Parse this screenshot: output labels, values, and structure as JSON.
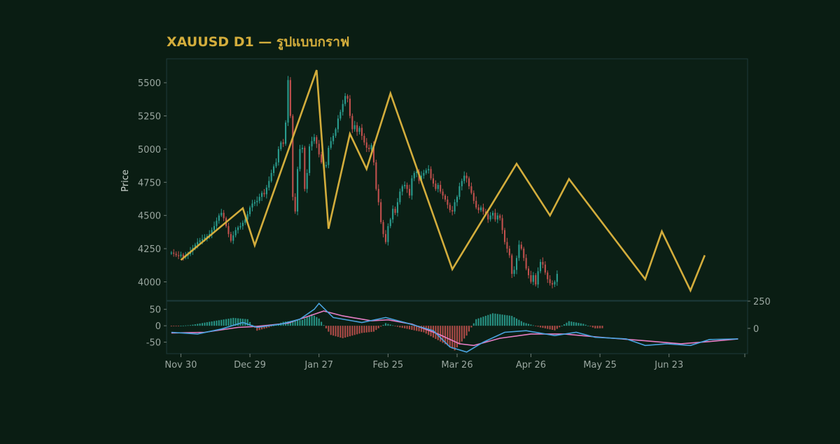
{
  "chart_data": {
    "type": "candlestick",
    "title": "XAUUSD D1 — รูปแบบกราฟ",
    "ylabel": "Price",
    "colors": {
      "background": "#0a1d13",
      "panel": "#0b1f15",
      "frame": "#1d3a3a",
      "up": "#2a9d8f",
      "down": "#c0504d",
      "pattern": "#d3ad3c",
      "macd": "#4aa3df",
      "signal": "#e87ec6"
    },
    "x_range": [
      "2025-11-24",
      "2026-07-26"
    ],
    "x_ticks": [
      {
        "date": "2025-11-30",
        "label": "Nov 30"
      },
      {
        "date": "2025-12-29",
        "label": "Dec 29"
      },
      {
        "date": "2026-01-27",
        "label": "Jan 27"
      },
      {
        "date": "2026-02-25",
        "label": "Feb 25"
      },
      {
        "date": "2026-03-26",
        "label": "Mar 26"
      },
      {
        "date": "2026-04-26",
        "label": "Apr 26"
      },
      {
        "date": "2026-05-25",
        "label": "May 25"
      },
      {
        "date": "2026-06-23",
        "label": "Jun 23"
      }
    ],
    "price_panel": {
      "ylim": [
        3860,
        5680
      ],
      "y_ticks": [
        "4000",
        "4250",
        "4500",
        "4750",
        "5000",
        "5250",
        "5500"
      ],
      "candles": {
        "start_date": "2025-11-26",
        "step_days": 1,
        "open": 4215,
        "close": [
          4220,
          4212,
          4200,
          4195,
          4205,
          4185,
          4198,
          4210,
          4230,
          4255,
          4280,
          4300,
          4312,
          4322,
          4335,
          4345,
          4360,
          4390,
          4420,
          4460,
          4500,
          4520,
          4480,
          4420,
          4360,
          4310,
          4350,
          4390,
          4410,
          4420,
          4445,
          4470,
          4510,
          4560,
          4590,
          4600,
          4610,
          4640,
          4670,
          4660,
          4710,
          4760,
          4820,
          4870,
          4900,
          5000,
          5050,
          5040,
          5200,
          5520,
          5250,
          4640,
          4530,
          4850,
          5000,
          5010,
          4700,
          4820,
          5020,
          5060,
          5090,
          5040,
          4960,
          4900,
          4870,
          4880,
          5010,
          5060,
          5100,
          5150,
          5230,
          5280,
          5340,
          5400,
          5380,
          5250,
          5150,
          5180,
          5130,
          5160,
          5100,
          5050,
          5010,
          5000,
          5030,
          4900,
          4700,
          4600,
          4450,
          4360,
          4300,
          4420,
          4470,
          4550,
          4520,
          4600,
          4680,
          4720,
          4730,
          4700,
          4650,
          4780,
          4820,
          4830,
          4760,
          4800,
          4820,
          4840,
          4850,
          4780,
          4740,
          4700,
          4730,
          4680,
          4650,
          4620,
          4580,
          4540,
          4530,
          4600,
          4640,
          4720,
          4760,
          4800,
          4780,
          4720,
          4670,
          4610,
          4560,
          4540,
          4560,
          4530,
          4510,
          4470,
          4500,
          4520,
          4470,
          4500,
          4480,
          4390,
          4300,
          4250,
          4200,
          4060,
          4090,
          4180,
          4280,
          4250,
          4180,
          4100,
          4050,
          4000,
          4050,
          3980,
          4080,
          4150,
          4130,
          4070,
          4020,
          3990,
          3980,
          4000,
          4060
        ]
      },
      "zigzag": [
        {
          "date": "2025-11-30",
          "value": 4165
        },
        {
          "date": "2025-12-26",
          "value": 4555
        },
        {
          "date": "2025-12-31",
          "value": 4275
        },
        {
          "date": "2026-01-26",
          "value": 5595
        },
        {
          "date": "2026-01-31",
          "value": 4400
        },
        {
          "date": "2026-02-09",
          "value": 5115
        },
        {
          "date": "2026-02-16",
          "value": 4850
        },
        {
          "date": "2026-02-26",
          "value": 5420
        },
        {
          "date": "2026-03-24",
          "value": 4095
        },
        {
          "date": "2026-04-20",
          "value": 4890
        },
        {
          "date": "2026-05-04",
          "value": 4500
        },
        {
          "date": "2026-05-12",
          "value": 4775
        },
        {
          "date": "2026-06-13",
          "value": 4020
        },
        {
          "date": "2026-06-20",
          "value": 4380
        },
        {
          "date": "2026-07-02",
          "value": 3935
        },
        {
          "date": "2026-07-08",
          "value": 4200
        }
      ]
    },
    "macd_panel": {
      "ylim_left": [
        -85,
        75
      ],
      "left_ticks": [
        "-50",
        "0",
        "50"
      ],
      "right_ticks": [
        "0",
        "250"
      ],
      "macd": [
        {
          "date": "2025-11-26",
          "value": -20
        },
        {
          "date": "2025-12-07",
          "value": -25
        },
        {
          "date": "2025-12-17",
          "value": -10
        },
        {
          "date": "2025-12-26",
          "value": 10
        },
        {
          "date": "2026-01-01",
          "value": -5
        },
        {
          "date": "2026-01-11",
          "value": 5
        },
        {
          "date": "2026-01-19",
          "value": 20
        },
        {
          "date": "2026-01-25",
          "value": 50
        },
        {
          "date": "2026-01-27",
          "value": 68
        },
        {
          "date": "2026-02-02",
          "value": 25
        },
        {
          "date": "2026-02-14",
          "value": 10
        },
        {
          "date": "2026-02-24",
          "value": 25
        },
        {
          "date": "2026-03-04",
          "value": 10
        },
        {
          "date": "2026-03-16",
          "value": -15
        },
        {
          "date": "2026-03-23",
          "value": -65
        },
        {
          "date": "2026-03-30",
          "value": -80
        },
        {
          "date": "2026-04-06",
          "value": -50
        },
        {
          "date": "2026-04-15",
          "value": -20
        },
        {
          "date": "2026-04-24",
          "value": -15
        },
        {
          "date": "2026-05-06",
          "value": -30
        },
        {
          "date": "2026-05-15",
          "value": -20
        },
        {
          "date": "2026-05-23",
          "value": -35
        },
        {
          "date": "2026-06-05",
          "value": -40
        },
        {
          "date": "2026-06-13",
          "value": -60
        },
        {
          "date": "2026-06-22",
          "value": -55
        },
        {
          "date": "2026-07-02",
          "value": -60
        },
        {
          "date": "2026-07-10",
          "value": -42
        },
        {
          "date": "2026-07-22",
          "value": -40
        }
      ],
      "signal": [
        {
          "date": "2025-11-26",
          "value": -22
        },
        {
          "date": "2025-12-10",
          "value": -20
        },
        {
          "date": "2025-12-24",
          "value": -5
        },
        {
          "date": "2026-01-01",
          "value": -2
        },
        {
          "date": "2026-01-14",
          "value": 8
        },
        {
          "date": "2026-01-25",
          "value": 35
        },
        {
          "date": "2026-01-29",
          "value": 45
        },
        {
          "date": "2026-02-06",
          "value": 30
        },
        {
          "date": "2026-02-18",
          "value": 15
        },
        {
          "date": "2026-02-25",
          "value": 18
        },
        {
          "date": "2026-03-07",
          "value": 5
        },
        {
          "date": "2026-03-18",
          "value": -25
        },
        {
          "date": "2026-03-27",
          "value": -55
        },
        {
          "date": "2026-04-02",
          "value": -60
        },
        {
          "date": "2026-04-13",
          "value": -38
        },
        {
          "date": "2026-04-26",
          "value": -25
        },
        {
          "date": "2026-05-10",
          "value": -25
        },
        {
          "date": "2026-05-25",
          "value": -35
        },
        {
          "date": "2026-06-12",
          "value": -45
        },
        {
          "date": "2026-06-28",
          "value": -55
        },
        {
          "date": "2026-07-10",
          "value": -48
        },
        {
          "date": "2026-07-22",
          "value": -40
        }
      ],
      "histogram": {
        "start_date": "2025-11-26",
        "step_days": 1,
        "values": [
          0,
          0,
          0,
          0,
          0,
          0,
          0,
          0,
          0,
          0,
          0,
          0,
          0,
          0,
          0,
          0,
          0,
          0,
          0,
          0,
          0,
          0,
          0,
          0,
          0,
          0,
          0,
          0,
          0,
          0,
          0,
          0,
          0,
          0,
          0,
          0,
          0,
          0,
          0,
          0,
          0,
          0,
          0,
          0,
          0,
          0,
          0,
          0,
          0,
          0,
          0,
          0,
          0,
          0,
          0,
          0,
          0,
          0,
          0,
          0,
          0,
          0,
          0,
          0,
          0,
          0,
          0,
          0,
          0,
          0,
          0,
          0,
          0,
          0,
          0,
          0,
          0,
          0,
          0,
          0,
          0,
          0,
          0,
          0,
          0,
          0,
          0,
          0,
          0,
          0,
          0,
          0,
          0,
          0,
          0,
          0,
          0,
          0,
          0,
          0,
          0,
          0,
          0,
          0,
          0,
          0,
          0,
          0,
          0,
          0,
          0,
          0,
          0,
          0,
          0,
          0,
          0,
          0,
          0,
          0,
          0,
          0,
          0,
          0,
          0,
          0,
          0,
          0,
          0,
          0,
          0,
          0,
          0,
          0,
          0,
          0,
          0,
          0,
          0,
          0,
          0,
          0,
          0,
          0,
          0,
          0,
          0,
          0,
          0,
          0,
          0,
          0,
          0,
          0,
          0,
          0,
          0,
          0,
          0,
          0,
          0,
          0,
          0,
          0,
          0,
          0,
          0,
          0,
          0,
          0,
          0,
          0,
          0,
          0,
          0,
          0,
          0,
          0,
          0,
          0,
          0,
          0
        ],
        "profile": [
          {
            "date": "2025-11-26",
            "value": -2
          },
          {
            "date": "2025-12-04",
            "value": 2
          },
          {
            "date": "2025-12-12",
            "value": 12
          },
          {
            "date": "2025-12-22",
            "value": 24
          },
          {
            "date": "2025-12-28",
            "value": 20
          },
          {
            "date": "2026-01-01",
            "value": -15
          },
          {
            "date": "2026-01-06",
            "value": -5
          },
          {
            "date": "2026-01-12",
            "value": 12
          },
          {
            "date": "2026-01-20",
            "value": 18
          },
          {
            "date": "2026-01-24",
            "value": 35
          },
          {
            "date": "2026-01-27",
            "value": 22
          },
          {
            "date": "2026-02-01",
            "value": -28
          },
          {
            "date": "2026-02-06",
            "value": -38
          },
          {
            "date": "2026-02-14",
            "value": -22
          },
          {
            "date": "2026-02-19",
            "value": -18
          },
          {
            "date": "2026-02-24",
            "value": 8
          },
          {
            "date": "2026-03-02",
            "value": -5
          },
          {
            "date": "2026-03-12",
            "value": -20
          },
          {
            "date": "2026-03-22",
            "value": -60
          },
          {
            "date": "2026-03-25",
            "value": -75
          },
          {
            "date": "2026-03-30",
            "value": -30
          },
          {
            "date": "2026-04-03",
            "value": 20
          },
          {
            "date": "2026-04-10",
            "value": 38
          },
          {
            "date": "2026-04-18",
            "value": 30
          },
          {
            "date": "2026-04-23",
            "value": 10
          },
          {
            "date": "2026-04-30",
            "value": -5
          },
          {
            "date": "2026-05-06",
            "value": -14
          },
          {
            "date": "2026-05-12",
            "value": 14
          },
          {
            "date": "2026-05-18",
            "value": 6
          },
          {
            "date": "2026-05-23",
            "value": -8
          },
          {
            "date": "2026-06-04",
            "value": -6
          },
          {
            "date": "2026-06-12",
            "value": -22
          },
          {
            "date": "2026-06-18",
            "value": -30
          },
          {
            "date": "2026-06-24",
            "value": -6
          },
          {
            "date": "2026-07-01",
            "value": -10
          },
          {
            "date": "2026-07-06",
            "value": 10
          },
          {
            "date": "2026-07-14",
            "value": 26
          },
          {
            "date": "2026-07-20",
            "value": 10
          },
          {
            "date": "2026-07-24",
            "value": 4
          }
        ]
      }
    }
  }
}
